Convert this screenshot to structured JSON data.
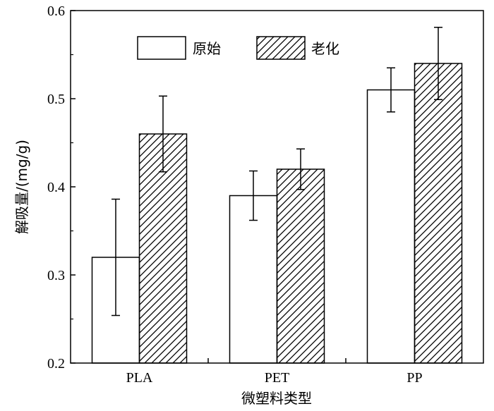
{
  "chart_data": {
    "type": "bar",
    "xlabel": "微塑料类型",
    "ylabel": "解吸量/(mg/g)",
    "categories": [
      "PLA",
      "PET",
      "PP"
    ],
    "ylim": [
      0.2,
      0.6
    ],
    "yticks": [
      "0.2",
      "0.3",
      "0.4",
      "0.5",
      "0.6"
    ],
    "series": [
      {
        "name": "原始",
        "pattern": "none",
        "values": [
          0.32,
          0.39,
          0.51
        ],
        "errors": [
          0.066,
          0.028,
          0.025
        ]
      },
      {
        "name": "老化",
        "pattern": "hatch",
        "values": [
          0.46,
          0.42,
          0.54
        ],
        "errors": [
          0.043,
          0.023,
          0.041
        ]
      }
    ],
    "grid": false,
    "legend": "top"
  }
}
